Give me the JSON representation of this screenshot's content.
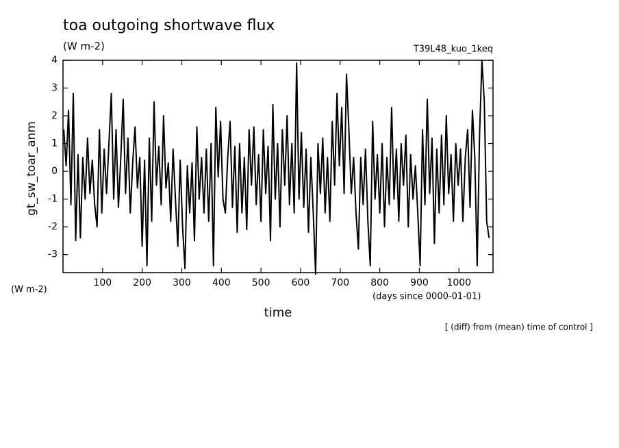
{
  "chart_data": {
    "type": "line",
    "title": "toa outgoing shortwave flux",
    "units_top": "(W m-2)",
    "run_label": "T39L48_kuo_1keq",
    "y_label": "gt_sw_toar_anm",
    "units_left": "(W m-2)",
    "x_label": "time",
    "x_units": "(days since 0000-01-01)",
    "note": "[ (diff) from (mean) time of control ]",
    "xlim": [
      0,
      1086
    ],
    "ylim": [
      -3.65,
      4.0
    ],
    "xticks": [
      100,
      200,
      300,
      400,
      500,
      600,
      700,
      800,
      900,
      1000
    ],
    "yticks": [
      -3,
      -2,
      -1,
      0,
      1,
      2,
      3,
      4
    ],
    "x": [
      2,
      8,
      14,
      20,
      26,
      32,
      38,
      44,
      50,
      56,
      62,
      68,
      74,
      80,
      86,
      92,
      98,
      104,
      110,
      116,
      122,
      128,
      134,
      140,
      146,
      152,
      158,
      164,
      170,
      176,
      182,
      188,
      194,
      200,
      206,
      212,
      218,
      224,
      230,
      236,
      242,
      248,
      254,
      260,
      266,
      272,
      278,
      284,
      290,
      296,
      302,
      308,
      314,
      320,
      326,
      332,
      338,
      344,
      350,
      356,
      362,
      368,
      374,
      380,
      386,
      392,
      398,
      404,
      410,
      416,
      422,
      428,
      434,
      440,
      446,
      452,
      458,
      464,
      470,
      476,
      482,
      488,
      494,
      500,
      506,
      512,
      518,
      524,
      530,
      536,
      542,
      548,
      554,
      560,
      566,
      572,
      578,
      584,
      590,
      596,
      602,
      608,
      614,
      620,
      626,
      632,
      638,
      644,
      650,
      656,
      662,
      668,
      674,
      680,
      686,
      692,
      698,
      704,
      710,
      716,
      722,
      728,
      734,
      740,
      746,
      752,
      758,
      764,
      770,
      776,
      782,
      788,
      794,
      800,
      806,
      812,
      818,
      824,
      830,
      836,
      842,
      848,
      854,
      860,
      866,
      872,
      878,
      884,
      890,
      896,
      902,
      908,
      914,
      920,
      926,
      932,
      938,
      944,
      950,
      956,
      962,
      968,
      974,
      980,
      986,
      992,
      998,
      1004,
      1010,
      1016,
      1022,
      1028,
      1034,
      1040,
      1046,
      1052,
      1058,
      1064,
      1070,
      1076
    ],
    "series": [
      {
        "color": "#000000",
        "values": [
          1.5,
          0.2,
          2.2,
          -1.2,
          2.8,
          -2.5,
          0.6,
          -2.4,
          0.5,
          -1.0,
          1.2,
          -0.8,
          0.4,
          -1.2,
          -2.0,
          1.5,
          -1.5,
          0.8,
          -0.8,
          1.0,
          2.8,
          -1.0,
          1.5,
          -1.3,
          0.5,
          2.6,
          -0.8,
          1.2,
          -1.5,
          0.3,
          1.6,
          -0.6,
          0.5,
          -2.7,
          0.4,
          -3.4,
          1.2,
          -1.8,
          2.5,
          -0.5,
          0.9,
          -1.2,
          2.0,
          -0.6,
          0.3,
          -1.8,
          0.8,
          -1.0,
          -2.7,
          0.4,
          -2.0,
          -3.5,
          0.2,
          -1.5,
          0.3,
          -2.5,
          1.6,
          -1.0,
          0.5,
          -1.5,
          0.8,
          -1.8,
          1.0,
          -3.4,
          2.3,
          -0.2,
          1.8,
          -1.0,
          -1.5,
          0.5,
          1.8,
          -1.3,
          0.9,
          -2.2,
          1.0,
          -1.5,
          0.5,
          -2.1,
          1.5,
          -0.5,
          1.6,
          -1.2,
          0.6,
          -1.8,
          1.5,
          -0.8,
          0.9,
          -2.5,
          2.4,
          -1.0,
          1.0,
          -2.0,
          1.5,
          -0.5,
          2.0,
          -1.2,
          1.0,
          -1.5,
          3.9,
          -1.0,
          1.4,
          -1.3,
          0.8,
          -2.2,
          0.5,
          -1.5,
          -3.7,
          1.0,
          -0.8,
          1.2,
          -1.5,
          0.5,
          -1.8,
          1.8,
          -0.5,
          2.8,
          0.2,
          2.3,
          -0.8,
          3.5,
          1.5,
          -0.8,
          0.5,
          -1.5,
          -2.8,
          0.5,
          -1.2,
          0.8,
          -1.8,
          -3.4,
          1.8,
          -1.0,
          0.6,
          -1.5,
          1.0,
          -2.0,
          0.5,
          -1.2,
          2.3,
          -1.0,
          0.8,
          -1.8,
          1.0,
          -0.5,
          1.3,
          -2.0,
          0.6,
          -1.0,
          0.2,
          -1.5,
          -3.4,
          1.5,
          -1.2,
          2.6,
          -0.8,
          1.2,
          -2.6,
          0.8,
          -1.5,
          1.3,
          -1.2,
          2.0,
          -0.8,
          0.6,
          -1.8,
          1.0,
          -0.5,
          0.8,
          -1.8,
          0.5,
          1.5,
          -1.3,
          2.2,
          0.5,
          -3.4,
          1.3,
          4.0,
          2.5,
          -1.8,
          -2.4
        ]
      }
    ]
  }
}
